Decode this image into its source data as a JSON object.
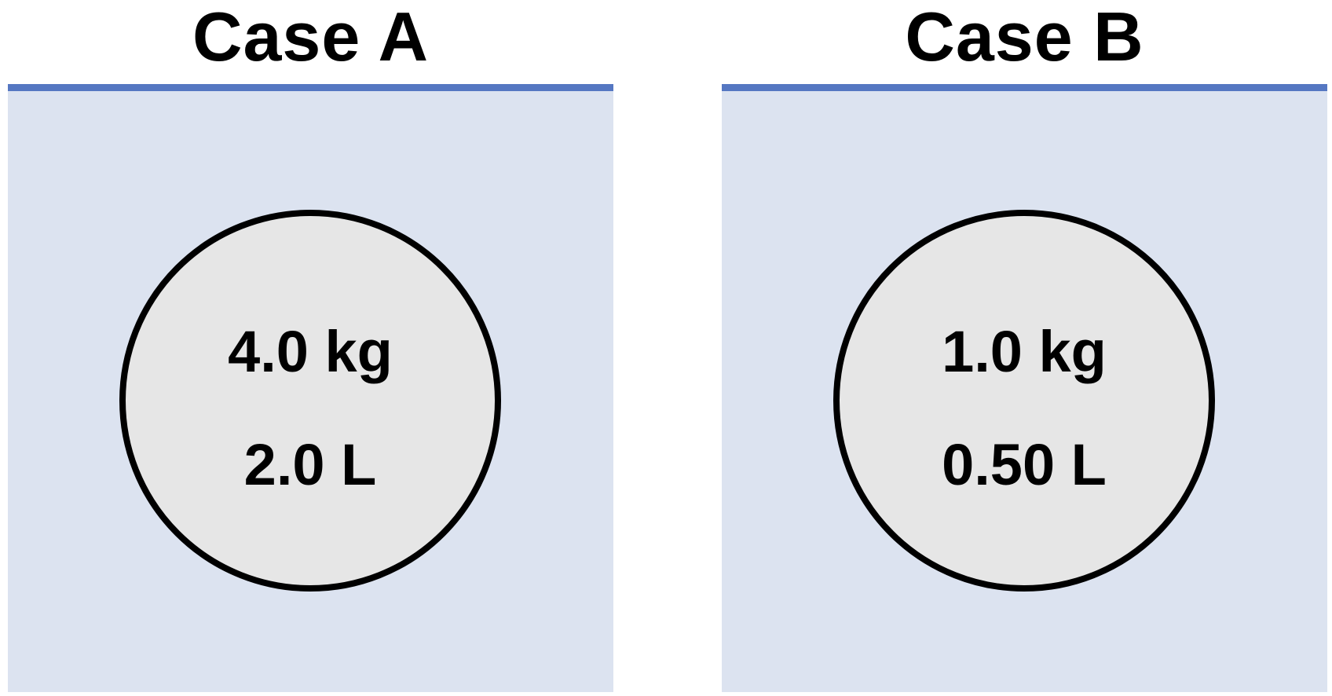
{
  "colors": {
    "fluid": "#dce3f0",
    "surface": "#5577c2",
    "object_fill": "#e6e6e6",
    "object_outline": "#000000"
  },
  "cases": [
    {
      "title": "Case A",
      "mass": "4.0 kg",
      "volume": "2.0 L"
    },
    {
      "title": "Case B",
      "mass": "1.0 kg",
      "volume": "0.50 L"
    }
  ]
}
